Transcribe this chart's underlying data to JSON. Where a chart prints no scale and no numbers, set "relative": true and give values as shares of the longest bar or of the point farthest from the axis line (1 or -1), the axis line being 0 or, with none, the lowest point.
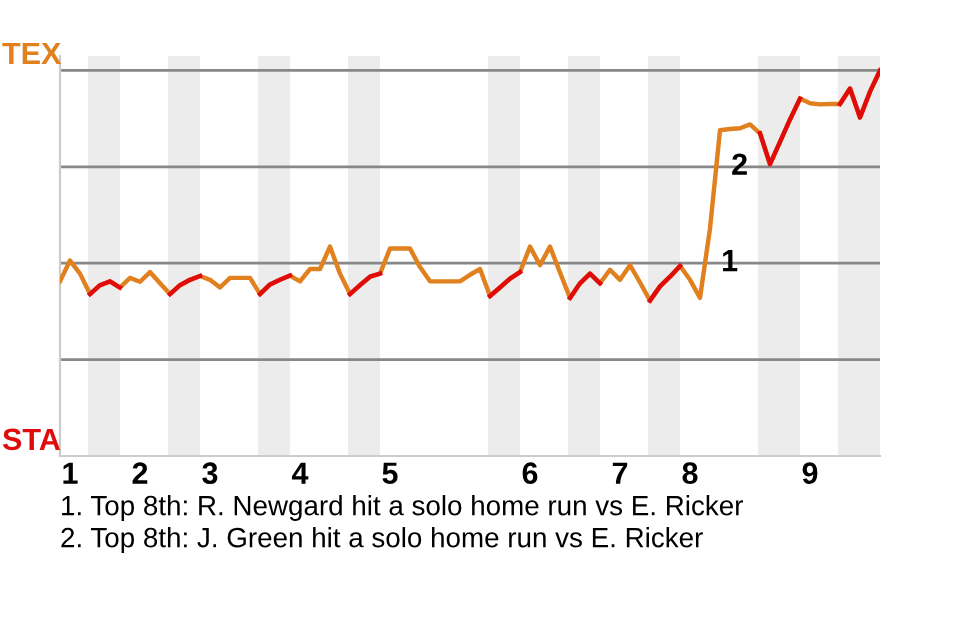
{
  "chart_data": {
    "type": "line",
    "relative": true,
    "categories": [
      null,
      "1",
      null,
      null,
      null,
      null,
      null,
      null,
      "2",
      null,
      null,
      null,
      null,
      null,
      null,
      "3",
      null,
      null,
      null,
      null,
      null,
      null,
      null,
      null,
      "4",
      null,
      null,
      null,
      null,
      null,
      null,
      null,
      null,
      "5",
      null,
      null,
      null,
      null,
      null,
      null,
      null,
      null,
      null,
      null,
      null,
      null,
      null,
      "6",
      null,
      null,
      null,
      null,
      null,
      null,
      null,
      null,
      "7",
      null,
      null,
      null,
      null,
      null,
      null,
      "8",
      null,
      null,
      null,
      null,
      null,
      null,
      null,
      null,
      null,
      null,
      null,
      "9",
      null,
      null,
      null,
      null,
      null,
      null,
      null
    ],
    "series": [
      {
        "color": "#e0801e",
        "values": [
          0.453,
          0.507,
          0.473,
          0.42,
          0.443,
          0.453,
          0.437,
          0.462,
          0.452,
          0.477,
          0.448,
          0.42,
          0.443,
          0.457,
          0.467,
          0.457,
          0.437,
          0.462,
          0.462,
          0.462,
          0.42,
          0.445,
          0.457,
          0.468,
          0.453,
          0.485,
          0.485,
          0.543,
          0.473,
          0.42,
          0.443,
          0.465,
          0.473,
          0.538,
          0.538,
          0.538,
          0.49,
          0.453,
          0.453,
          0.453,
          0.453,
          0.47,
          0.485,
          0.415,
          0.437,
          0.46,
          0.477,
          0.543,
          0.495,
          0.543,
          0.476,
          0.41,
          0.448,
          0.473,
          0.448,
          0.483,
          0.457,
          0.495,
          0.45,
          0.403,
          0.44,
          0.465,
          0.493,
          0.457,
          0.41,
          0.59,
          0.845,
          0.848,
          0.85,
          0.86,
          0.837,
          0.757,
          0.815,
          0.873,
          0.927,
          0.915,
          0.912,
          0.913,
          0.913,
          0.953,
          0.878,
          0.945,
          1.0
        ]
      },
      {
        "color": "#e00c0c",
        "values": [
          null,
          null,
          null,
          0.42,
          0.443,
          0.453,
          0.437,
          null,
          null,
          null,
          null,
          0.42,
          0.443,
          0.457,
          0.467,
          null,
          null,
          null,
          null,
          null,
          0.42,
          0.445,
          0.457,
          0.468,
          null,
          null,
          null,
          null,
          null,
          0.42,
          0.443,
          0.465,
          0.473,
          null,
          null,
          null,
          null,
          null,
          null,
          null,
          null,
          null,
          null,
          0.415,
          0.437,
          0.46,
          0.477,
          null,
          null,
          null,
          null,
          0.41,
          0.448,
          0.473,
          0.448,
          null,
          null,
          null,
          null,
          0.403,
          0.44,
          0.465,
          0.493,
          null,
          null,
          null,
          null,
          null,
          null,
          null,
          0.837,
          0.757,
          0.815,
          0.873,
          0.927,
          null,
          null,
          null,
          0.913,
          0.953,
          0.878,
          0.945,
          1.0
        ]
      }
    ],
    "line_style": "solid",
    "marker": "none",
    "ref_lines": [
      {
        "axis": "y",
        "value": 0.25,
        "color": "#888888"
      },
      {
        "axis": "y",
        "value": 0.5,
        "color": "#888888"
      },
      {
        "axis": "y",
        "value": 0.75,
        "color": "#888888"
      },
      {
        "axis": "y",
        "value": 1.0,
        "color": "#888888"
      }
    ],
    "annotations": [
      "TEX",
      "STA",
      {
        "text": "1",
        "y": 0.5
      },
      {
        "text": "2",
        "y": 0.75
      },
      "1. Top 8th: R. Newgard hit a solo home run vs E. Ricker",
      "2. Top 8th: J. Green hit a solo home run vs E. Ricker"
    ]
  }
}
